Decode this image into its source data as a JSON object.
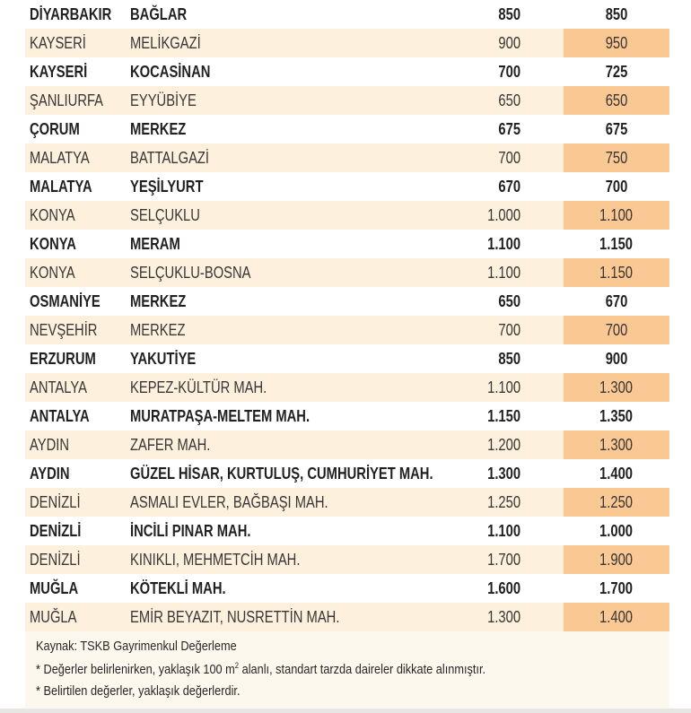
{
  "rows": [
    {
      "city": "DİYARBAKIR",
      "district": "BAĞLAR",
      "value_1": "850",
      "value_2": "850"
    },
    {
      "city": "KAYSERİ",
      "district": "MELİKGAZİ",
      "value_1": "900",
      "value_2": "950"
    },
    {
      "city": "KAYSERİ",
      "district": "KOCASİNAN",
      "value_1": "700",
      "value_2": "725"
    },
    {
      "city": "ŞANLIURFA",
      "district": "EYYÜBİYE",
      "value_1": "650",
      "value_2": "650"
    },
    {
      "city": "ÇORUM",
      "district": "MERKEZ",
      "value_1": "675",
      "value_2": "675"
    },
    {
      "city": "MALATYA",
      "district": "BATTALGAZİ",
      "value_1": "700",
      "value_2": "750"
    },
    {
      "city": "MALATYA",
      "district": "YEŞİLYURT",
      "value_1": "670",
      "value_2": "700"
    },
    {
      "city": "KONYA",
      "district": "SELÇUKLU",
      "value_1": "1.000",
      "value_2": "1.100"
    },
    {
      "city": "KONYA",
      "district": "MERAM",
      "value_1": "1.100",
      "value_2": "1.150"
    },
    {
      "city": "KONYA",
      "district": "SELÇUKLU-BOSNA",
      "value_1": "1.100",
      "value_2": "1.150"
    },
    {
      "city": "OSMANİYE",
      "district": "MERKEZ",
      "value_1": "650",
      "value_2": "670"
    },
    {
      "city": "NEVŞEHİR",
      "district": "MERKEZ",
      "value_1": "700",
      "value_2": "700"
    },
    {
      "city": "ERZURUM",
      "district": "YAKUTİYE",
      "value_1": "850",
      "value_2": "900"
    },
    {
      "city": "ANTALYA",
      "district": "KEPEZ-KÜLTÜR MAH.",
      "value_1": "1.100",
      "value_2": "1.300"
    },
    {
      "city": "ANTALYA",
      "district": "MURATPAŞA-MELTEM MAH.",
      "value_1": "1.150",
      "value_2": "1.350"
    },
    {
      "city": "AYDIN",
      "district": "ZAFER MAH.",
      "value_1": "1.200",
      "value_2": "1.300"
    },
    {
      "city": "AYDIN",
      "district": "GÜZEL HİSAR, KURTULUŞ, CUMHURİYET MAH.",
      "value_1": "1.300",
      "value_2": "1.400"
    },
    {
      "city": "DENİZLİ",
      "district": "ASMALI EVLER, BAĞBAŞI MAH.",
      "value_1": "1.250",
      "value_2": "1.250"
    },
    {
      "city": "DENİZLİ",
      "district": "İNCİLİ PINAR MAH.",
      "value_1": "1.100",
      "value_2": "1.000"
    },
    {
      "city": "DENİZLİ",
      "district": "KINIKLI, MEHMETCİH MAH.",
      "value_1": "1.700",
      "value_2": "1.900"
    },
    {
      "city": "MUĞLA",
      "district": "KÖTEKLİ MAH.",
      "value_1": "1.600",
      "value_2": "1.700"
    },
    {
      "city": "MUĞLA",
      "district": "EMİR BEYAZIT, NUSRETTİN MAH.",
      "value_1": "1.300",
      "value_2": "1.400"
    }
  ],
  "footer": {
    "source": "Kaynak: TSKB Gayrimenkul Değerleme",
    "note_1_a": "* Değerler belirlenirken, yaklaşık 100 m",
    "note_1_sup": "2",
    "note_1_b": " alanlı, standart tarzda daireler dikkate alınmıştır.",
    "note_2": "* Belirtilen değerler, yaklaşık değerlerdir."
  },
  "colors": {
    "band": "#fdf0dc",
    "highlight": "#f9c893",
    "footer_bg": "#fdf8ee"
  }
}
